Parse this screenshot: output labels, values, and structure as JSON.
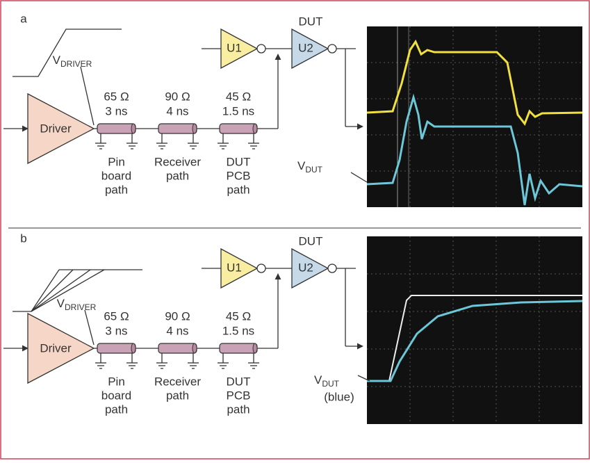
{
  "panels": [
    {
      "label": "a",
      "dut_label": "DUT",
      "u1": "U1",
      "u2": "U2",
      "driver": "Driver",
      "v_driver": {
        "main": "V",
        "sub": "DRIVER"
      },
      "segments": [
        {
          "impedance": "65 Ω",
          "delay": "3 ns",
          "name": [
            "Pin",
            "board",
            "path"
          ]
        },
        {
          "impedance": "90 Ω",
          "delay": "4 ns",
          "name": [
            "Receiver",
            "path"
          ]
        },
        {
          "impedance": "45 Ω",
          "delay": "1.5 ns",
          "name": [
            "DUT",
            "PCB",
            "path"
          ]
        }
      ],
      "v_dut": {
        "main": "V",
        "sub": "DUT"
      }
    },
    {
      "label": "b",
      "dut_label": "DUT",
      "u1": "U1",
      "u2": "U2",
      "driver": "Driver",
      "v_driver": {
        "main": "V",
        "sub": "DRIVER"
      },
      "segments": [
        {
          "impedance": "65 Ω",
          "delay": "3 ns",
          "name": [
            "Pin",
            "board",
            "path"
          ]
        },
        {
          "impedance": "90 Ω",
          "delay": "4 ns",
          "name": [
            "Receiver",
            "path"
          ]
        },
        {
          "impedance": "45 Ω",
          "delay": "1.5 ns",
          "name": [
            "DUT",
            "PCB",
            "path"
          ]
        }
      ],
      "v_dut": {
        "main": "V",
        "sub": "DUT",
        "note": "(blue)"
      }
    }
  ]
}
